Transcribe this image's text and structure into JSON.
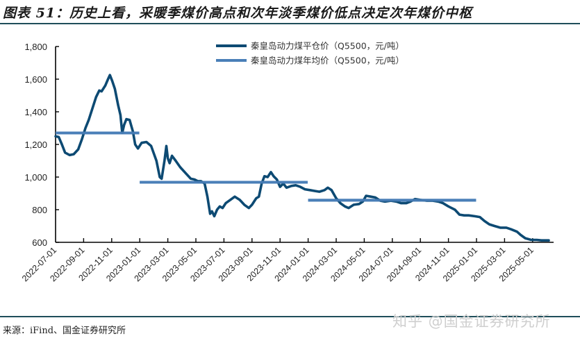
{
  "header": {
    "title": "图表 51：历史上看，采暖季煤价高点和次年淡季煤价低点决定次年煤价中枢"
  },
  "footer": {
    "source": "来源：iFind、国金证券研究所",
    "watermark": "知乎 @国金证券研究所"
  },
  "colors": {
    "spot_line": "#0d4a73",
    "annual_avg_line": "#4a7fb8",
    "axis": "#000000",
    "rule": "#1f4e5a"
  },
  "chart_data": {
    "type": "line",
    "title": "历史上看，采暖季煤价高点和次年淡季煤价低点决定次年煤价中枢",
    "xlabel": "",
    "ylabel": "",
    "ylim": [
      600,
      1800
    ],
    "yticks": [
      600,
      800,
      1000,
      1200,
      1400,
      1600,
      1800
    ],
    "ytick_labels": [
      "600",
      "800",
      "1,000",
      "1,200",
      "1,400",
      "1,600",
      "1,800"
    ],
    "xticks": [
      "2022-07-01",
      "2022-09-01",
      "2022-11-01",
      "2023-01-01",
      "2023-03-01",
      "2023-05-01",
      "2023-07-01",
      "2023-09-01",
      "2023-11-01",
      "2024-01-01",
      "2024-03-01",
      "2024-05-01",
      "2024-07-01",
      "2024-09-01",
      "2024-11-01",
      "2025-01-01",
      "2025-03-01",
      "2025-05-01"
    ],
    "grid": false,
    "legend_position": "top-center",
    "series": [
      {
        "name": "秦皇岛动力煤平仓价（Q5500，元/吨）",
        "style": "line-dark",
        "points": [
          [
            "2022-07-01",
            1250
          ],
          [
            "2022-07-08",
            1245
          ],
          [
            "2022-07-15",
            1200
          ],
          [
            "2022-07-22",
            1150
          ],
          [
            "2022-08-01",
            1135
          ],
          [
            "2022-08-10",
            1140
          ],
          [
            "2022-08-20",
            1170
          ],
          [
            "2022-08-28",
            1230
          ],
          [
            "2022-09-05",
            1300
          ],
          [
            "2022-09-12",
            1350
          ],
          [
            "2022-09-20",
            1420
          ],
          [
            "2022-09-28",
            1490
          ],
          [
            "2022-10-05",
            1530
          ],
          [
            "2022-10-10",
            1525
          ],
          [
            "2022-10-18",
            1560
          ],
          [
            "2022-10-24",
            1600
          ],
          [
            "2022-10-28",
            1625
          ],
          [
            "2022-11-02",
            1590
          ],
          [
            "2022-11-08",
            1540
          ],
          [
            "2022-11-15",
            1440
          ],
          [
            "2022-11-20",
            1380
          ],
          [
            "2022-11-24",
            1270
          ],
          [
            "2022-11-28",
            1320
          ],
          [
            "2022-12-03",
            1355
          ],
          [
            "2022-12-10",
            1350
          ],
          [
            "2022-12-17",
            1280
          ],
          [
            "2022-12-22",
            1200
          ],
          [
            "2022-12-28",
            1175
          ],
          [
            "2023-01-05",
            1210
          ],
          [
            "2023-01-15",
            1215
          ],
          [
            "2023-01-25",
            1190
          ],
          [
            "2023-02-05",
            1100
          ],
          [
            "2023-02-12",
            1000
          ],
          [
            "2023-02-16",
            990
          ],
          [
            "2023-02-22",
            1100
          ],
          [
            "2023-02-26",
            1190
          ],
          [
            "2023-03-01",
            1115
          ],
          [
            "2023-03-05",
            1085
          ],
          [
            "2023-03-10",
            1130
          ],
          [
            "2023-03-18",
            1100
          ],
          [
            "2023-03-28",
            1060
          ],
          [
            "2023-04-10",
            1020
          ],
          [
            "2023-04-20",
            990
          ],
          [
            "2023-04-28",
            985
          ],
          [
            "2023-05-05",
            975
          ],
          [
            "2023-05-12",
            975
          ],
          [
            "2023-05-20",
            960
          ],
          [
            "2023-05-26",
            880
          ],
          [
            "2023-06-01",
            775
          ],
          [
            "2023-06-05",
            790
          ],
          [
            "2023-06-10",
            760
          ],
          [
            "2023-06-16",
            800
          ],
          [
            "2023-06-22",
            820
          ],
          [
            "2023-06-28",
            810
          ],
          [
            "2023-07-05",
            840
          ],
          [
            "2023-07-15",
            860
          ],
          [
            "2023-07-25",
            880
          ],
          [
            "2023-08-05",
            860
          ],
          [
            "2023-08-15",
            830
          ],
          [
            "2023-08-25",
            810
          ],
          [
            "2023-09-01",
            830
          ],
          [
            "2023-09-10",
            870
          ],
          [
            "2023-09-16",
            880
          ],
          [
            "2023-09-22",
            960
          ],
          [
            "2023-09-28",
            1005
          ],
          [
            "2023-10-05",
            1000
          ],
          [
            "2023-10-12",
            1030
          ],
          [
            "2023-10-18",
            1005
          ],
          [
            "2023-10-25",
            985
          ],
          [
            "2023-11-01",
            940
          ],
          [
            "2023-11-08",
            960
          ],
          [
            "2023-11-15",
            935
          ],
          [
            "2023-11-25",
            945
          ],
          [
            "2023-12-05",
            950
          ],
          [
            "2023-12-15",
            940
          ],
          [
            "2023-12-25",
            925
          ],
          [
            "2024-01-05",
            920
          ],
          [
            "2024-01-15",
            915
          ],
          [
            "2024-01-25",
            910
          ],
          [
            "2024-02-05",
            920
          ],
          [
            "2024-02-12",
            935
          ],
          [
            "2024-02-20",
            920
          ],
          [
            "2024-03-01",
            870
          ],
          [
            "2024-03-10",
            840
          ],
          [
            "2024-03-20",
            820
          ],
          [
            "2024-03-28",
            810
          ],
          [
            "2024-04-08",
            830
          ],
          [
            "2024-04-20",
            835
          ],
          [
            "2024-04-28",
            850
          ],
          [
            "2024-05-05",
            885
          ],
          [
            "2024-05-15",
            880
          ],
          [
            "2024-05-25",
            875
          ],
          [
            "2024-06-05",
            855
          ],
          [
            "2024-06-15",
            850
          ],
          [
            "2024-06-28",
            855
          ],
          [
            "2024-07-10",
            850
          ],
          [
            "2024-07-20",
            840
          ],
          [
            "2024-08-01",
            840
          ],
          [
            "2024-08-10",
            850
          ],
          [
            "2024-08-20",
            865
          ],
          [
            "2024-09-01",
            860
          ],
          [
            "2024-09-15",
            855
          ],
          [
            "2024-09-28",
            855
          ],
          [
            "2024-10-10",
            850
          ],
          [
            "2024-10-20",
            840
          ],
          [
            "2024-11-01",
            820
          ],
          [
            "2024-11-15",
            800
          ],
          [
            "2024-11-25",
            770
          ],
          [
            "2024-12-05",
            765
          ],
          [
            "2024-12-15",
            765
          ],
          [
            "2024-12-28",
            760
          ],
          [
            "2025-01-08",
            755
          ],
          [
            "2025-01-18",
            730
          ],
          [
            "2025-01-28",
            710
          ],
          [
            "2025-02-08",
            700
          ],
          [
            "2025-02-20",
            690
          ],
          [
            "2025-03-05",
            690
          ],
          [
            "2025-03-15",
            680
          ],
          [
            "2025-03-28",
            665
          ],
          [
            "2025-04-05",
            645
          ],
          [
            "2025-04-15",
            625
          ],
          [
            "2025-04-28",
            615
          ],
          [
            "2025-05-10",
            615
          ],
          [
            "2025-05-20",
            612
          ],
          [
            "2025-06-05",
            612
          ]
        ]
      },
      {
        "name": "秦皇岛动力煤年均价（Q5500，元/吨）",
        "style": "line-light",
        "segments": [
          {
            "start": "2022-07-01",
            "end": "2022-12-31",
            "value": 1270
          },
          {
            "start": "2023-01-01",
            "end": "2023-12-31",
            "value": 968
          },
          {
            "start": "2024-01-01",
            "end": "2024-12-31",
            "value": 858
          }
        ]
      }
    ]
  },
  "legend": {
    "items": [
      {
        "label": "秦皇岛动力煤平仓价（Q5500，元/吨）"
      },
      {
        "label": "秦皇岛动力煤年均价（Q5500，元/吨）"
      }
    ]
  }
}
